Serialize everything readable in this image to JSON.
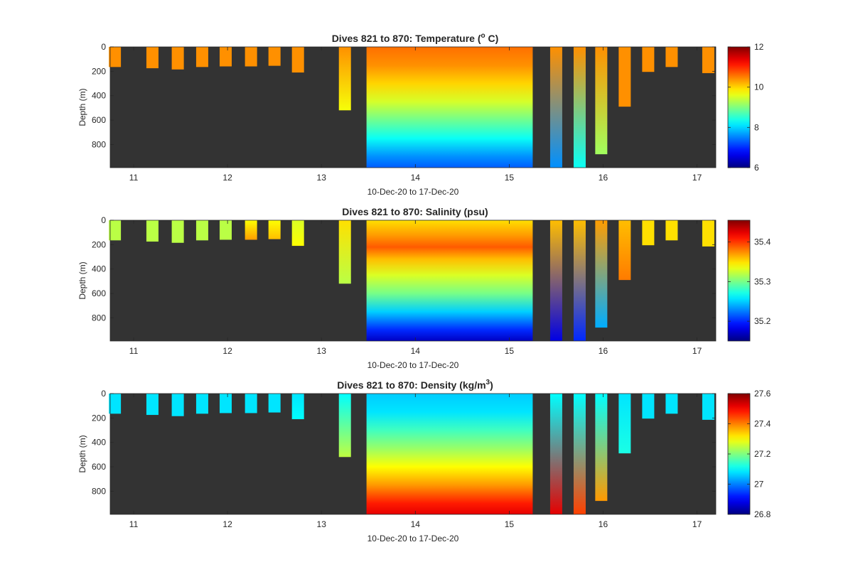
{
  "figure": {
    "background": "#ffffff",
    "axes_background": "#333333"
  },
  "chart_data": [
    {
      "type": "heatmap",
      "title_main": "Dives 821 to 870: Temperature (",
      "title_sup": "o",
      "title_end": " C)",
      "xlabel": "10-Dec-20 to 17-Dec-20",
      "ylabel": "Depth (m)",
      "xlim": [
        10.75,
        17.2
      ],
      "ylim": [
        990,
        0
      ],
      "x_ticks": [
        11,
        12,
        13,
        14,
        15,
        16,
        17
      ],
      "y_ticks": [
        0,
        200,
        400,
        600,
        800
      ],
      "colorbar": {
        "min": 6,
        "max": 12,
        "ticks": [
          6,
          8,
          10,
          12
        ],
        "colormap": "jet"
      },
      "profiles": [
        {
          "x": 10.8,
          "max_depth": 165,
          "top": 10.4,
          "bottom": 10.4
        },
        {
          "x": 11.2,
          "max_depth": 175,
          "top": 10.4,
          "bottom": 10.4
        },
        {
          "x": 11.47,
          "max_depth": 185,
          "top": 10.4,
          "bottom": 10.4
        },
        {
          "x": 11.73,
          "max_depth": 165,
          "top": 10.4,
          "bottom": 10.4
        },
        {
          "x": 11.98,
          "max_depth": 160,
          "top": 10.4,
          "bottom": 10.4
        },
        {
          "x": 12.25,
          "max_depth": 160,
          "top": 10.4,
          "bottom": 10.4
        },
        {
          "x": 12.5,
          "max_depth": 155,
          "top": 10.4,
          "bottom": 10.4
        },
        {
          "x": 12.75,
          "max_depth": 210,
          "top": 10.4,
          "bottom": 10.4
        },
        {
          "x": 13.25,
          "max_depth": 520,
          "top": 10.4,
          "bottom": 9.7
        },
        {
          "x": 15.5,
          "max_depth": 990,
          "top": 10.4,
          "bottom": 7.6
        },
        {
          "x": 15.75,
          "max_depth": 990,
          "top": 10.4,
          "bottom": 8.3
        },
        {
          "x": 15.98,
          "max_depth": 880,
          "top": 10.4,
          "bottom": 9.2
        },
        {
          "x": 16.23,
          "max_depth": 490,
          "top": 10.4,
          "bottom": 10.4
        },
        {
          "x": 16.48,
          "max_depth": 205,
          "top": 10.4,
          "bottom": 10.4
        },
        {
          "x": 16.73,
          "max_depth": 165,
          "top": 10.4,
          "bottom": 10.4
        },
        {
          "x": 17.12,
          "max_depth": 215,
          "top": 10.4,
          "bottom": 10.4
        }
      ],
      "block": {
        "x_start": 13.48,
        "x_end": 15.25,
        "max_depth": 990,
        "depth": [
          0,
          150,
          300,
          450,
          600,
          750,
          900,
          990
        ],
        "value": [
          10.6,
          10.4,
          10.0,
          9.5,
          8.9,
          8.3,
          7.6,
          7.3
        ]
      }
    },
    {
      "type": "heatmap",
      "title_main": "Dives 821 to 870: Salinity (psu)",
      "title_sup": "",
      "title_end": "",
      "xlabel": "10-Dec-20 to 17-Dec-20",
      "ylabel": "Depth (m)",
      "xlim": [
        10.75,
        17.2
      ],
      "ylim": [
        990,
        0
      ],
      "x_ticks": [
        11,
        12,
        13,
        14,
        15,
        16,
        17
      ],
      "y_ticks": [
        0,
        200,
        400,
        600,
        800
      ],
      "colorbar": {
        "min": 35.15,
        "max": 35.455,
        "ticks": [
          35.2,
          35.3,
          35.4
        ],
        "colormap": "jet"
      },
      "profiles": [
        {
          "x": 10.8,
          "max_depth": 165,
          "top": 35.32,
          "bottom": 35.32
        },
        {
          "x": 11.2,
          "max_depth": 175,
          "top": 35.32,
          "bottom": 35.32
        },
        {
          "x": 11.47,
          "max_depth": 185,
          "top": 35.32,
          "bottom": 35.32
        },
        {
          "x": 11.73,
          "max_depth": 165,
          "top": 35.32,
          "bottom": 35.32
        },
        {
          "x": 11.98,
          "max_depth": 160,
          "top": 35.32,
          "bottom": 35.32
        },
        {
          "x": 12.25,
          "max_depth": 160,
          "top": 35.34,
          "bottom": 35.37
        },
        {
          "x": 12.5,
          "max_depth": 155,
          "top": 35.34,
          "bottom": 35.36
        },
        {
          "x": 12.75,
          "max_depth": 210,
          "top": 35.33,
          "bottom": 35.34
        },
        {
          "x": 13.25,
          "max_depth": 520,
          "top": 35.35,
          "bottom": 35.32
        },
        {
          "x": 15.5,
          "max_depth": 990,
          "top": 35.36,
          "bottom": 35.18
        },
        {
          "x": 15.75,
          "max_depth": 990,
          "top": 35.36,
          "bottom": 35.2
        },
        {
          "x": 15.98,
          "max_depth": 880,
          "top": 35.37,
          "bottom": 35.24
        },
        {
          "x": 16.23,
          "max_depth": 490,
          "top": 35.36,
          "bottom": 35.38
        },
        {
          "x": 16.48,
          "max_depth": 205,
          "top": 35.35,
          "bottom": 35.35
        },
        {
          "x": 16.73,
          "max_depth": 165,
          "top": 35.35,
          "bottom": 35.35
        },
        {
          "x": 17.12,
          "max_depth": 215,
          "top": 35.35,
          "bottom": 35.35
        }
      ],
      "block": {
        "x_start": 13.48,
        "x_end": 15.25,
        "max_depth": 990,
        "depth": [
          0,
          120,
          220,
          320,
          450,
          600,
          750,
          900,
          990
        ],
        "value": [
          35.35,
          35.37,
          35.39,
          35.36,
          35.33,
          35.3,
          35.25,
          35.2,
          35.17
        ]
      }
    },
    {
      "type": "heatmap",
      "title_main": "Dives 821 to 870: Density (kg/m",
      "title_sup": "3",
      "title_end": ")",
      "xlabel": "10-Dec-20 to 17-Dec-20",
      "ylabel": "Depth (m)",
      "xlim": [
        10.75,
        17.2
      ],
      "ylim": [
        990,
        0
      ],
      "x_ticks": [
        11,
        12,
        13,
        14,
        15,
        16,
        17
      ],
      "y_ticks": [
        0,
        200,
        400,
        600,
        800
      ],
      "colorbar": {
        "min": 26.8,
        "max": 27.6,
        "ticks": [
          26.8,
          27,
          27.2,
          27.4,
          27.6
        ],
        "colormap": "jet"
      },
      "profiles": [
        {
          "x": 10.8,
          "max_depth": 165,
          "top": 27.08,
          "bottom": 27.08
        },
        {
          "x": 11.2,
          "max_depth": 175,
          "top": 27.08,
          "bottom": 27.08
        },
        {
          "x": 11.47,
          "max_depth": 185,
          "top": 27.08,
          "bottom": 27.08
        },
        {
          "x": 11.73,
          "max_depth": 165,
          "top": 27.08,
          "bottom": 27.08
        },
        {
          "x": 11.98,
          "max_depth": 160,
          "top": 27.08,
          "bottom": 27.08
        },
        {
          "x": 12.25,
          "max_depth": 160,
          "top": 27.08,
          "bottom": 27.08
        },
        {
          "x": 12.5,
          "max_depth": 155,
          "top": 27.08,
          "bottom": 27.08
        },
        {
          "x": 12.75,
          "max_depth": 210,
          "top": 27.08,
          "bottom": 27.1
        },
        {
          "x": 13.25,
          "max_depth": 520,
          "top": 27.1,
          "bottom": 27.25
        },
        {
          "x": 15.5,
          "max_depth": 990,
          "top": 27.1,
          "bottom": 27.52
        },
        {
          "x": 15.75,
          "max_depth": 990,
          "top": 27.1,
          "bottom": 27.45
        },
        {
          "x": 15.98,
          "max_depth": 880,
          "top": 27.1,
          "bottom": 27.38
        },
        {
          "x": 16.23,
          "max_depth": 490,
          "top": 27.08,
          "bottom": 27.12
        },
        {
          "x": 16.48,
          "max_depth": 205,
          "top": 27.08,
          "bottom": 27.08
        },
        {
          "x": 16.73,
          "max_depth": 165,
          "top": 27.08,
          "bottom": 27.08
        },
        {
          "x": 17.12,
          "max_depth": 215,
          "top": 27.08,
          "bottom": 27.08
        }
      ],
      "block": {
        "x_start": 13.48,
        "x_end": 15.25,
        "max_depth": 990,
        "depth": [
          0,
          150,
          300,
          450,
          600,
          750,
          900,
          990
        ],
        "value": [
          27.06,
          27.08,
          27.15,
          27.22,
          27.3,
          27.38,
          27.48,
          27.52
        ]
      }
    }
  ]
}
